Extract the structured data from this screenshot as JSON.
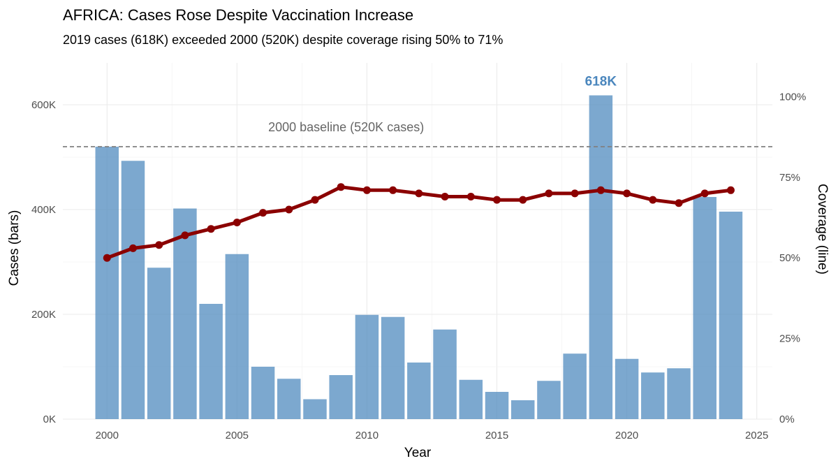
{
  "chart_data": {
    "type": "bar+line",
    "title": "AFRICA: Cases Rose Despite Vaccination Increase",
    "subtitle": "2019 cases (618K) exceeded 2000 (520K) despite coverage rising 50% to 71%",
    "xlabel": "Year",
    "ylabel_left": "Cases (bars)",
    "ylabel_right": "Coverage (line)",
    "x": [
      2000,
      2001,
      2002,
      2003,
      2004,
      2005,
      2006,
      2007,
      2008,
      2009,
      2010,
      2011,
      2012,
      2013,
      2014,
      2015,
      2016,
      2017,
      2018,
      2019,
      2020,
      2021,
      2022,
      2023,
      2024
    ],
    "series": [
      {
        "name": "Cases",
        "type": "bar",
        "axis": "left",
        "color": "#4a86bd",
        "values": [
          520000,
          493000,
          289000,
          402000,
          220000,
          315000,
          100000,
          77000,
          38000,
          84000,
          199000,
          195000,
          108000,
          171000,
          75000,
          52000,
          36000,
          73000,
          125000,
          618000,
          115000,
          89000,
          97000,
          424000,
          396000
        ]
      },
      {
        "name": "Coverage",
        "type": "line",
        "axis": "right",
        "color": "#8b0000",
        "values": [
          50,
          53,
          54,
          57,
          59,
          61,
          64,
          65,
          68,
          72,
          71,
          71,
          70,
          69,
          69,
          68,
          68,
          70,
          70,
          71,
          70,
          68,
          67,
          70,
          71
        ]
      }
    ],
    "xlim": [
      1998.3,
      2025.6
    ],
    "ylim_left": [
      0,
      680000
    ],
    "ylim_right": [
      0,
      110.5
    ],
    "x_ticks": [
      2000,
      2005,
      2010,
      2015,
      2020,
      2025
    ],
    "x_tick_labels": [
      "2000",
      "2005",
      "2010",
      "2015",
      "2020",
      "2025"
    ],
    "y_left_ticks": [
      0,
      200000,
      400000,
      600000
    ],
    "y_left_tick_labels": [
      "0K",
      "200K",
      "400K",
      "600K"
    ],
    "y_right_ticks": [
      0,
      25,
      50,
      75,
      100
    ],
    "y_right_tick_labels": [
      "0%",
      "25%",
      "50%",
      "75%",
      "100%"
    ],
    "grid": true,
    "baseline": {
      "value": 520000,
      "label": "2000 baseline (520K cases)",
      "label_x": 2009.2,
      "color": "#808080"
    },
    "peak_annotation": {
      "x": 2019,
      "value": 618000,
      "label": "618K",
      "color": "#4a86bd"
    }
  }
}
